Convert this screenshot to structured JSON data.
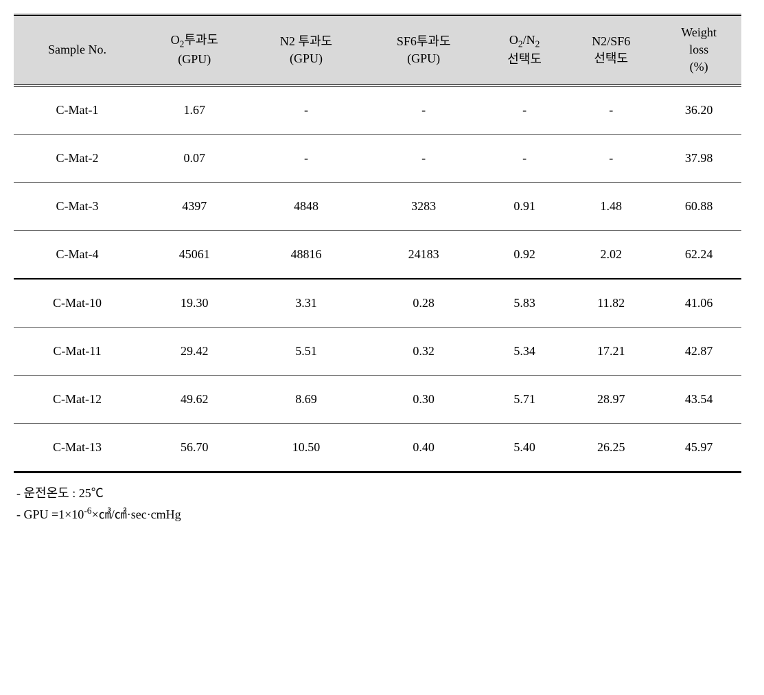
{
  "table": {
    "header_bg": "#d9d9d9",
    "columns": [
      {
        "label_html": "Sample No."
      },
      {
        "label_html": "O<sub>2</sub>투과도<br>(GPU)"
      },
      {
        "label_html": "N2 투과도<br>(GPU)"
      },
      {
        "label_html": "SF6투과도<br>(GPU)"
      },
      {
        "label_html": "O<sub>2</sub>/N<sub>2</sub><br>선택도"
      },
      {
        "label_html": "N2/SF6<br>선택도"
      },
      {
        "label_html": "Weight<br>loss<br>(%)"
      }
    ],
    "rows": [
      {
        "cells": [
          "C-Mat-1",
          "1.67",
          "-",
          "-",
          "-",
          "-",
          "36.20"
        ],
        "thick_bottom": false
      },
      {
        "cells": [
          "C-Mat-2",
          "0.07",
          "-",
          "-",
          "-",
          "-",
          "37.98"
        ],
        "thick_bottom": false
      },
      {
        "cells": [
          "C-Mat-3",
          "4397",
          "4848",
          "3283",
          "0.91",
          "1.48",
          "60.88"
        ],
        "thick_bottom": false
      },
      {
        "cells": [
          "C-Mat-4",
          "45061",
          "48816",
          "24183",
          "0.92",
          "2.02",
          "62.24"
        ],
        "thick_bottom": true
      },
      {
        "cells": [
          "C-Mat-10",
          "19.30",
          "3.31",
          "0.28",
          "5.83",
          "11.82",
          "41.06"
        ],
        "thick_bottom": false
      },
      {
        "cells": [
          "C-Mat-11",
          "29.42",
          "5.51",
          "0.32",
          "5.34",
          "17.21",
          "42.87"
        ],
        "thick_bottom": false
      },
      {
        "cells": [
          "C-Mat-12",
          "49.62",
          "8.69",
          "0.30",
          "5.71",
          "28.97",
          "43.54"
        ],
        "thick_bottom": false
      },
      {
        "cells": [
          "C-Mat-13",
          "56.70",
          "10.50",
          "0.40",
          "5.40",
          "26.25",
          "45.97"
        ],
        "thick_bottom": false
      }
    ]
  },
  "footnotes": [
    {
      "html": "- 운전온도 : 25℃"
    },
    {
      "html": "- GPU =1×10<sup>-6</sup>×㎤/㎠·sec·cmHg"
    }
  ]
}
